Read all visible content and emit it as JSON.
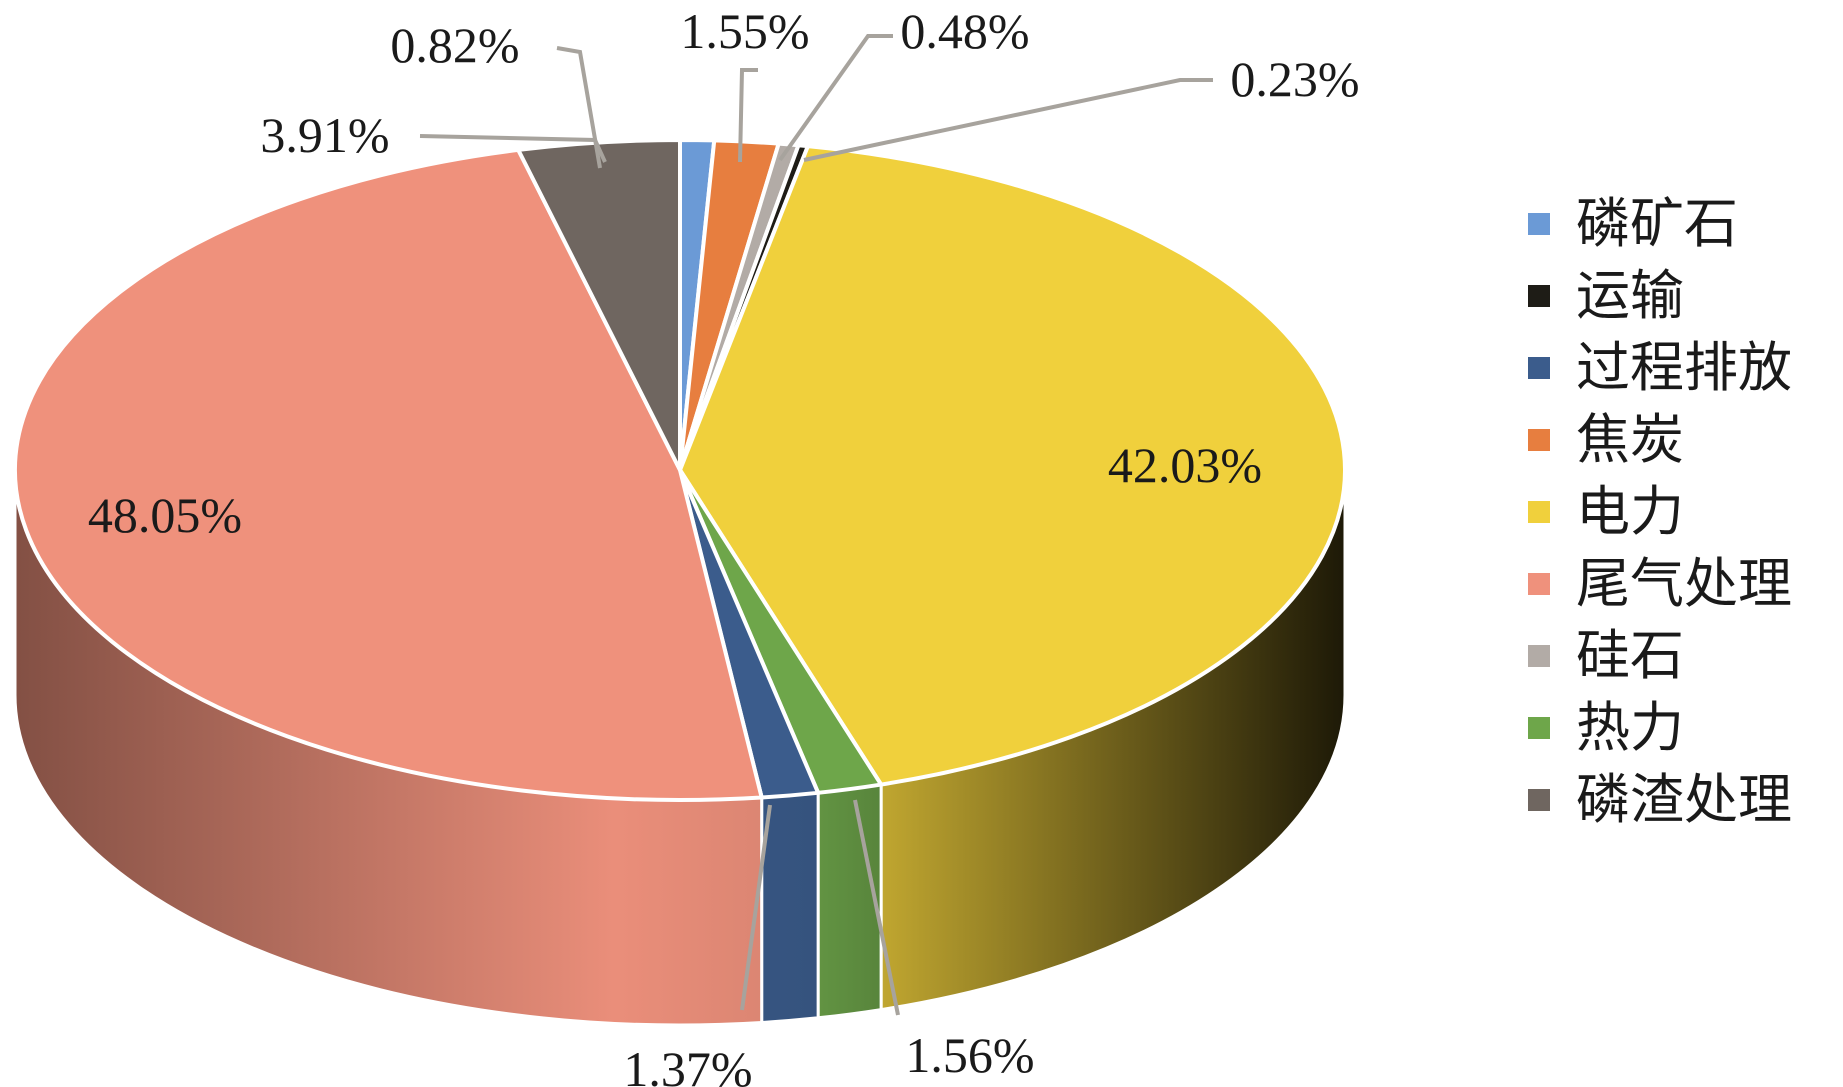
{
  "chart_data": {
    "type": "pie",
    "style": "3d",
    "legend_position": "right",
    "slices": [
      {
        "name": "磷矿石",
        "value": 0.82,
        "label": "0.82%",
        "color": "#6b9ad6"
      },
      {
        "name": "焦炭",
        "value": 1.55,
        "label": "1.55%",
        "color": "#e77e3f"
      },
      {
        "name": "硅石",
        "value": 0.48,
        "label": "0.48%",
        "color": "#b2aba6"
      },
      {
        "name": "运输",
        "value": 0.23,
        "label": "0.23%",
        "color": "#1e1c16"
      },
      {
        "name": "电力",
        "value": 42.03,
        "label": "42.03%",
        "color": "#f0d03c"
      },
      {
        "name": "热力",
        "value": 1.56,
        "label": "1.56%",
        "color": "#6ea64a"
      },
      {
        "name": "过程排放",
        "value": 1.37,
        "label": "1.37%",
        "color": "#3b5c8c"
      },
      {
        "name": "尾气处理",
        "value": 48.05,
        "label": "48.05%",
        "color": "#ef917c"
      },
      {
        "name": "磷渣处理",
        "value": 3.91,
        "label": "3.91%",
        "color": "#6f6660"
      }
    ],
    "legend": [
      {
        "label": "磷矿石",
        "color": "#6b9ad6"
      },
      {
        "label": "运输",
        "color": "#1e1c16"
      },
      {
        "label": "过程排放",
        "color": "#3b5c8c"
      },
      {
        "label": "焦炭",
        "color": "#e77e3f"
      },
      {
        "label": "电力",
        "color": "#f0d03c"
      },
      {
        "label": "尾气处理",
        "color": "#ef917c"
      },
      {
        "label": "硅石",
        "color": "#b2aba6"
      },
      {
        "label": "热力",
        "color": "#6ea64a"
      },
      {
        "label": "磷渣处理",
        "color": "#6f6660"
      }
    ]
  }
}
